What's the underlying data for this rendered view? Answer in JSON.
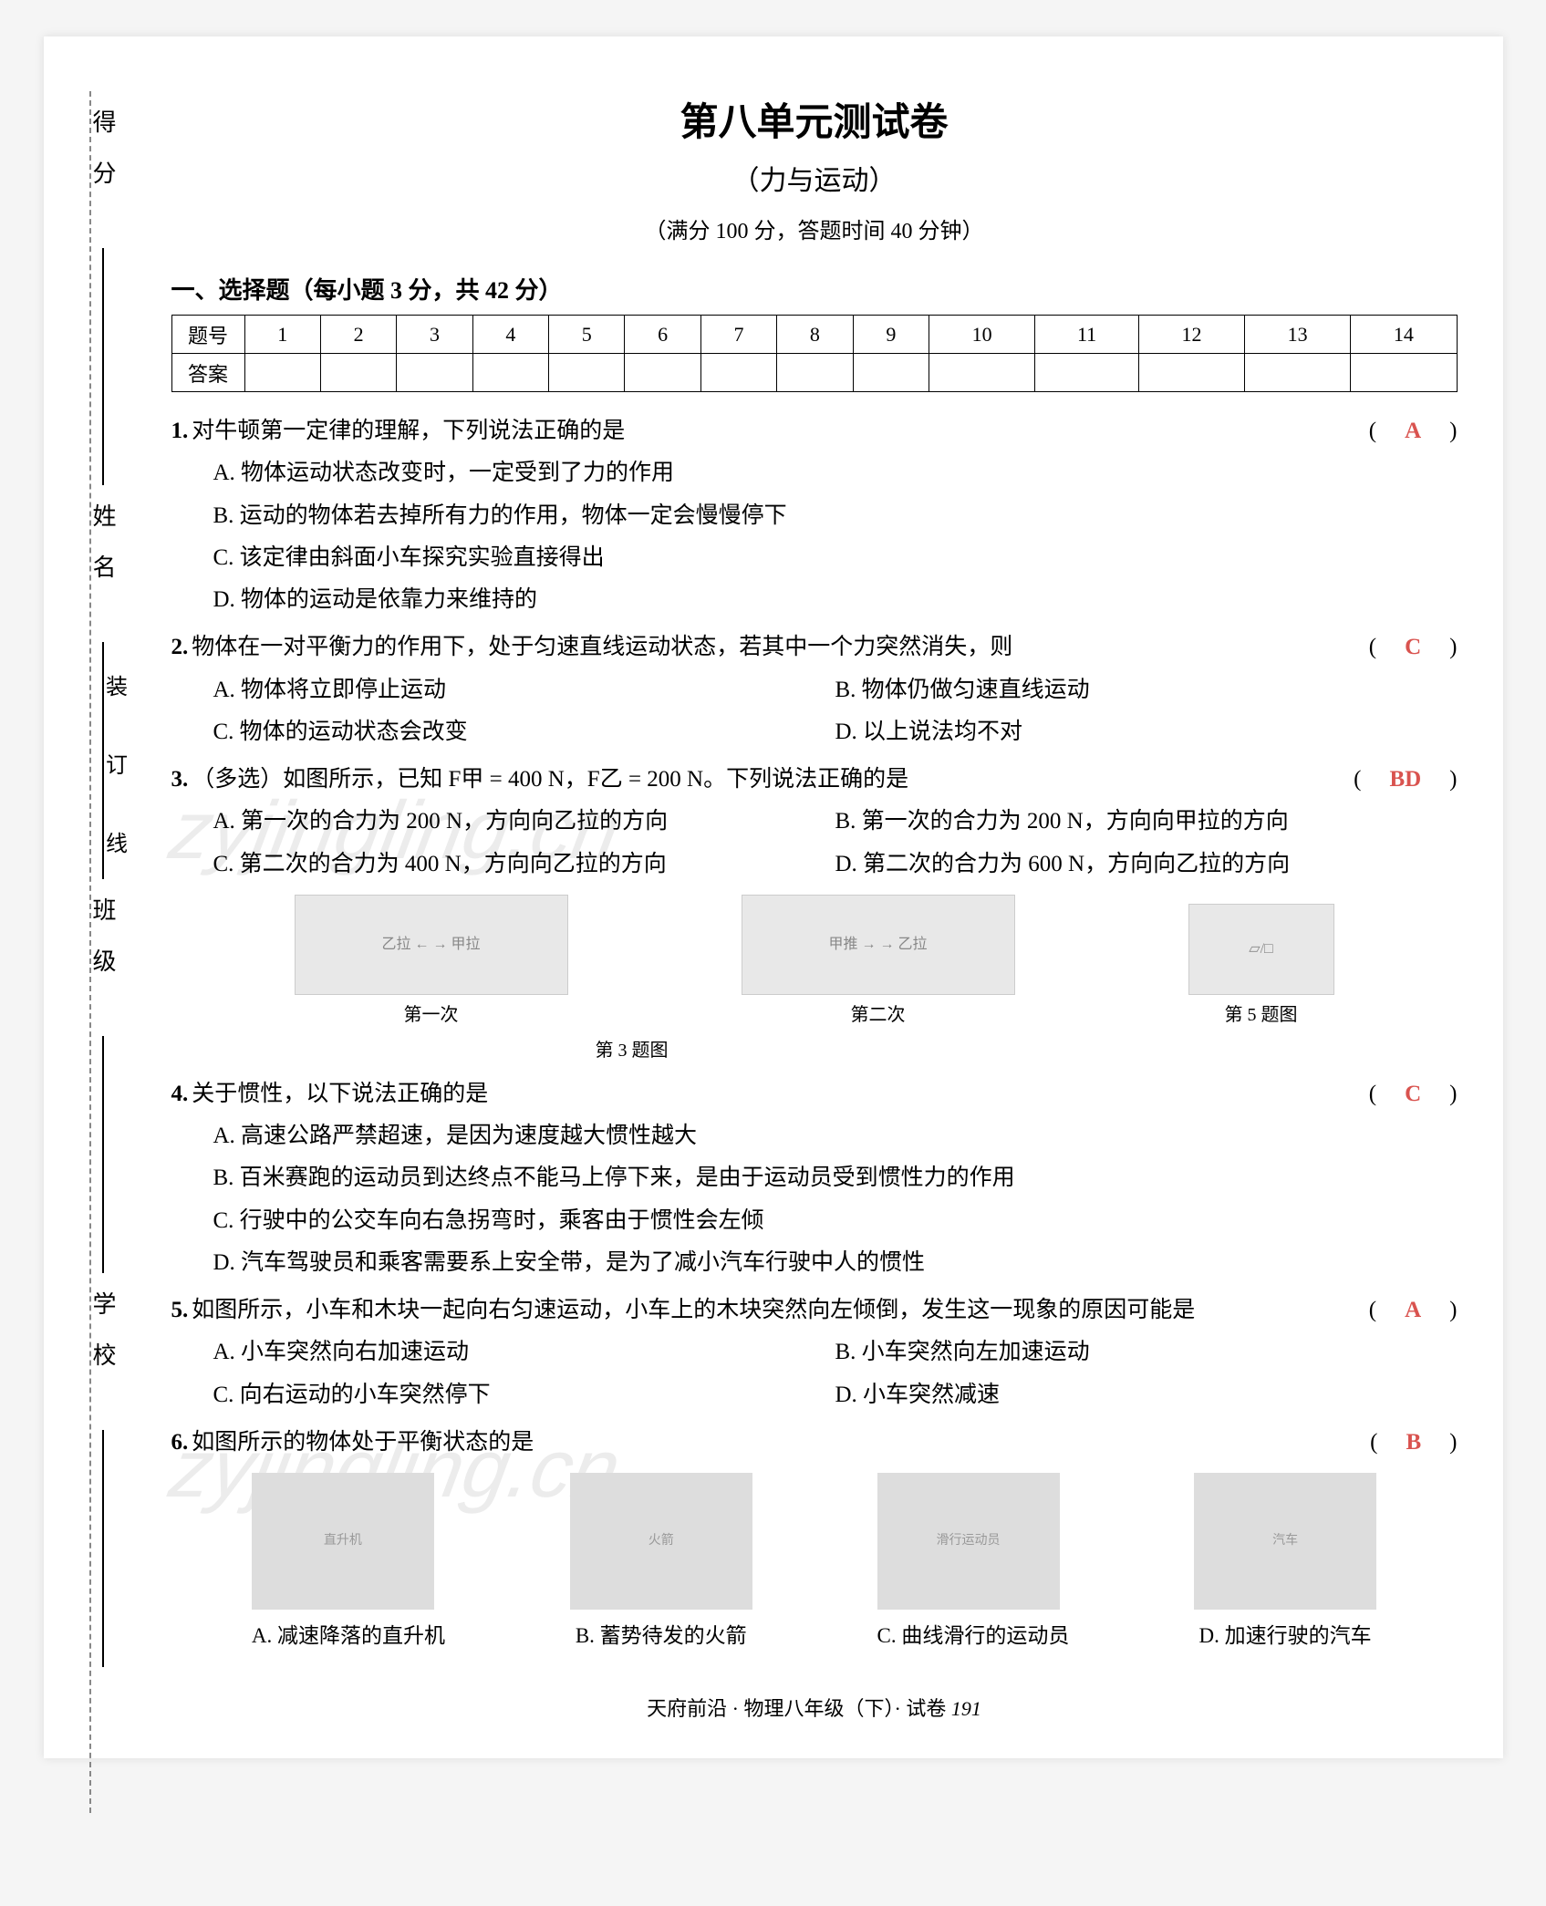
{
  "sidebar": {
    "labels": [
      "得分",
      "姓名",
      "班级",
      "学校"
    ],
    "binding_text": "装  订  线"
  },
  "header": {
    "title": "第八单元测试卷",
    "subtitle": "（力与运动）",
    "score_info": "（满分 100 分，答题时间 40 分钟）"
  },
  "section1": {
    "heading": "一、选择题（每小题 3 分，共 42 分）",
    "row_labels": [
      "题号",
      "答案"
    ],
    "numbers": [
      "1",
      "2",
      "3",
      "4",
      "5",
      "6",
      "7",
      "8",
      "9",
      "10",
      "11",
      "12",
      "13",
      "14"
    ]
  },
  "questions": [
    {
      "num": "1.",
      "stem": "对牛顿第一定律的理解，下列说法正确的是",
      "answer": "A",
      "options_layout": "single",
      "options": [
        "A. 物体运动状态改变时，一定受到了力的作用",
        "B. 运动的物体若去掉所有力的作用，物体一定会慢慢停下",
        "C. 该定律由斜面小车探究实验直接得出",
        "D. 物体的运动是依靠力来维持的"
      ]
    },
    {
      "num": "2.",
      "stem": "物体在一对平衡力的作用下，处于匀速直线运动状态，若其中一个力突然消失，则",
      "answer": "C",
      "options_layout": "double",
      "options": [
        "A. 物体将立即停止运动",
        "B. 物体仍做匀速直线运动",
        "C. 物体的运动状态会改变",
        "D. 以上说法均不对"
      ]
    },
    {
      "num": "3.",
      "stem": "（多选）如图所示，已知 F甲 = 400 N，F乙 = 200 N。下列说法正确的是",
      "answer": "BD",
      "options_layout": "double",
      "options": [
        "A. 第一次的合力为 200 N，方向向乙拉的方向",
        "B. 第一次的合力为 200 N，方向向甲拉的方向",
        "C. 第二次的合力为 400 N，方向向乙拉的方向",
        "D. 第二次的合力为 600 N，方向向乙拉的方向"
      ],
      "figures": [
        {
          "caption": "第一次",
          "group_caption": "第 3 题图"
        },
        {
          "caption": "第二次",
          "group_caption": ""
        },
        {
          "caption": "第 5 题图",
          "group_caption": ""
        }
      ]
    },
    {
      "num": "4.",
      "stem": "关于惯性，以下说法正确的是",
      "answer": "C",
      "options_layout": "single",
      "options": [
        "A. 高速公路严禁超速，是因为速度越大惯性越大",
        "B. 百米赛跑的运动员到达终点不能马上停下来，是由于运动员受到惯性力的作用",
        "C. 行驶中的公交车向右急拐弯时，乘客由于惯性会左倾",
        "D. 汽车驾驶员和乘客需要系上安全带，是为了减小汽车行驶中人的惯性"
      ]
    },
    {
      "num": "5.",
      "stem": "如图所示，小车和木块一起向右匀速运动，小车上的木块突然向左倾倒，发生这一现象的原因可能是",
      "answer": "A",
      "options_layout": "double",
      "options": [
        "A. 小车突然向右加速运动",
        "B. 小车突然向左加速运动",
        "C. 向右运动的小车突然停下",
        "D. 小车突然减速"
      ]
    },
    {
      "num": "6.",
      "stem": "如图所示的物体处于平衡状态的是",
      "answer": "B",
      "options_layout": "figures",
      "figure_options": [
        {
          "label": "A.",
          "caption": "减速降落的直升机"
        },
        {
          "label": "B.",
          "caption": "蓄势待发的火箭"
        },
        {
          "label": "C.",
          "caption": "曲线滑行的运动员"
        },
        {
          "label": "D.",
          "caption": "加速行驶的汽车"
        }
      ]
    }
  ],
  "footer": {
    "text_left": "天府前沿 · 物理八年级（下）· 试卷",
    "page": "191"
  },
  "watermark": "zyjingling.cn",
  "colors": {
    "answer": "#d9534f",
    "text": "#000000",
    "bg": "#ffffff"
  }
}
